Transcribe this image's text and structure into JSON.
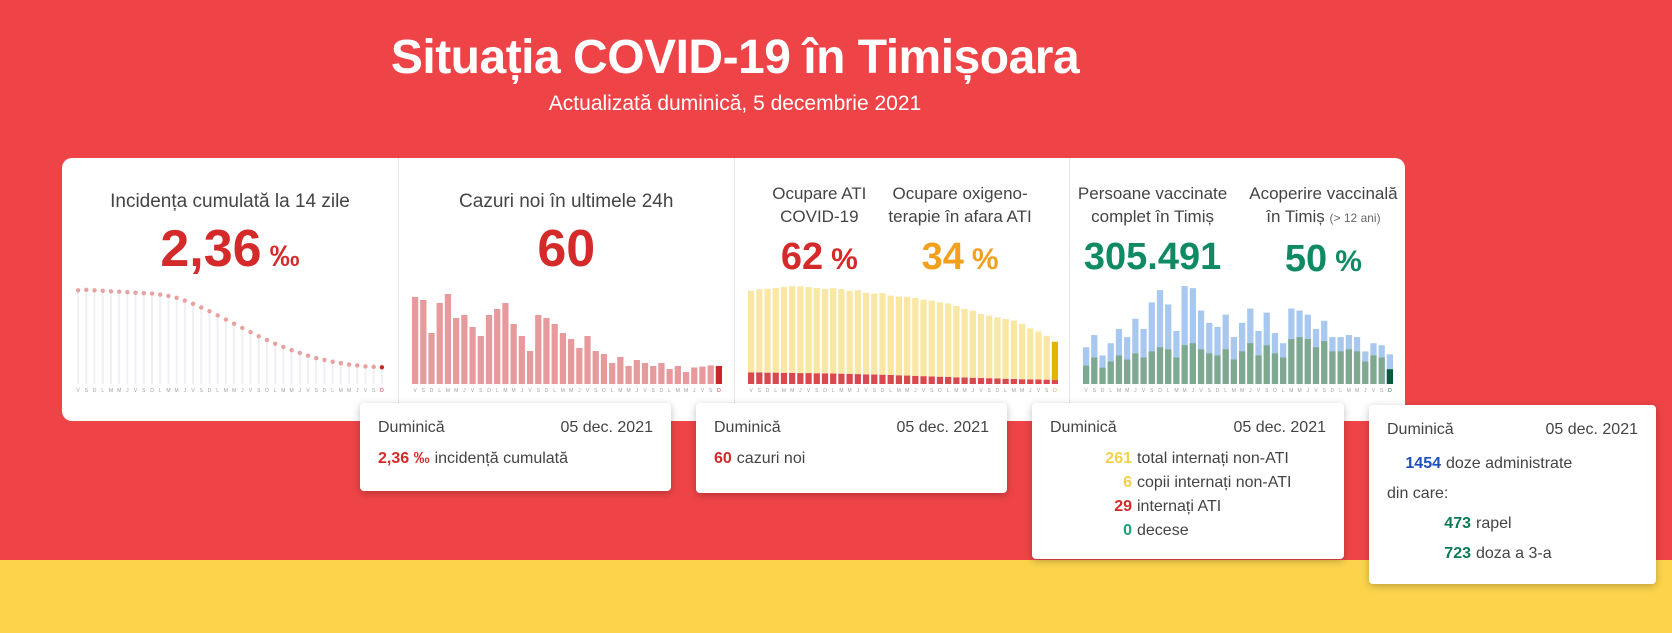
{
  "header": {
    "title": "Situația COVID-19 în Timișoara",
    "subtitle": "Actualizată duminică, 5 decembrie 2021"
  },
  "cards": [
    {
      "metrics": [
        {
          "title_lines": [
            "Incidența cumulată la 14 zile"
          ],
          "value": {
            "value": 2.36,
            "label": "2,36"
          },
          "unit": "‰",
          "color": "#d42a2a"
        }
      ],
      "chart": {
        "type": "line",
        "color": "#e8a0a0",
        "highlight_color": "#c62828",
        "ylim": [
          2.0,
          4.2
        ],
        "categories": [
          "V",
          "S",
          "D",
          "L",
          "M",
          "M",
          "J",
          "V",
          "S",
          "D",
          "L",
          "M",
          "M",
          "J",
          "V",
          "S",
          "D",
          "L",
          "M",
          "M",
          "J",
          "V",
          "S",
          "D",
          "L",
          "M",
          "M",
          "J",
          "V",
          "S",
          "D",
          "L",
          "M",
          "M",
          "J",
          "V",
          "S",
          "D"
        ],
        "series": [
          {
            "name": "incidență cumulată",
            "values": [
              4.02,
              4.03,
              4.02,
              4.01,
              4.0,
              3.99,
              3.98,
              3.97,
              3.96,
              3.95,
              3.93,
              3.9,
              3.86,
              3.8,
              3.73,
              3.65,
              3.57,
              3.48,
              3.39,
              3.3,
              3.21,
              3.12,
              3.03,
              2.95,
              2.87,
              2.8,
              2.73,
              2.67,
              2.61,
              2.56,
              2.52,
              2.48,
              2.45,
              2.42,
              2.4,
              2.38,
              2.37,
              2.36
            ]
          }
        ]
      },
      "tooltip": {
        "day": "Duminică",
        "date": "05 dec. 2021",
        "lines": [
          {
            "value": {
              "value": 2.36,
              "label": "2,36 ‰"
            },
            "text": "incidență cumulată",
            "color": "#d42a2a"
          }
        ]
      }
    },
    {
      "metrics": [
        {
          "title_lines": [
            "Cazuri noi în ultimele 24h"
          ],
          "value": 60,
          "color": "#d42a2a"
        }
      ],
      "chart": {
        "type": "bar",
        "color": "#e79a9c",
        "highlight_color": "#c62828",
        "ylim": [
          0,
          340
        ],
        "categories": [
          "V",
          "S",
          "D",
          "L",
          "M",
          "M",
          "J",
          "V",
          "S",
          "D",
          "L",
          "M",
          "M",
          "J",
          "V",
          "S",
          "D",
          "L",
          "M",
          "M",
          "J",
          "V",
          "S",
          "D",
          "L",
          "M",
          "M",
          "J",
          "V",
          "S",
          "D",
          "L",
          "M",
          "M",
          "J",
          "V",
          "S",
          "D"
        ],
        "series": [
          {
            "name": "cazuri noi",
            "values": [
              290,
              280,
              170,
              270,
              300,
              220,
              230,
              190,
              160,
              230,
              250,
              270,
              200,
              160,
              110,
              230,
              220,
              200,
              170,
              150,
              120,
              160,
              110,
              100,
              70,
              90,
              60,
              80,
              70,
              60,
              70,
              50,
              60,
              40,
              55,
              58,
              62,
              60
            ]
          }
        ]
      },
      "tooltip": {
        "day": "Duminică",
        "date": "05 dec. 2021",
        "lines": [
          {
            "value": 60,
            "text": "cazuri noi",
            "color": "#d42a2a"
          }
        ]
      }
    },
    {
      "metrics": [
        {
          "title_lines": [
            "Ocupare ATI",
            "COVID-19"
          ],
          "value": 62,
          "unit": "%",
          "color": "#d42a2a"
        },
        {
          "title_lines": [
            "Ocupare oxigeno-",
            "terapie în afara ATI"
          ],
          "value": 34,
          "unit": "%",
          "color": "#f2a01e"
        }
      ],
      "chart": {
        "type": "stacked-bar",
        "highlight_color": "#e0b400",
        "ylim": [
          0,
          700
        ],
        "categories": [
          "V",
          "S",
          "D",
          "L",
          "M",
          "M",
          "J",
          "V",
          "S",
          "D",
          "L",
          "M",
          "M",
          "J",
          "V",
          "S",
          "D",
          "L",
          "M",
          "M",
          "J",
          "V",
          "S",
          "D",
          "L",
          "M",
          "M",
          "J",
          "V",
          "S",
          "D",
          "L",
          "M",
          "M",
          "J",
          "V",
          "S",
          "D"
        ],
        "series": [
          {
            "name": "internați ATI",
            "color": "#d9474f",
            "values": [
              80,
              80,
              78,
              78,
              77,
              76,
              75,
              75,
              74,
              73,
              72,
              71,
              70,
              68,
              66,
              65,
              64,
              62,
              60,
              58,
              56,
              54,
              52,
              50,
              48,
              46,
              45,
              43,
              41,
              40,
              38,
              36,
              35,
              33,
              32,
              31,
              30,
              29
            ]
          },
          {
            "name": "total internați non-ATI",
            "color": "#f9e7a3",
            "values": [
              560,
              570,
              575,
              580,
              590,
              595,
              595,
              590,
              585,
              580,
              585,
              580,
              570,
              575,
              560,
              555,
              560,
              545,
              540,
              540,
              535,
              525,
              520,
              510,
              505,
              490,
              470,
              460,
              440,
              430,
              420,
              410,
              400,
              380,
              350,
              330,
              300,
              261
            ]
          }
        ]
      },
      "tooltip": {
        "day": "Duminică",
        "date": "05 dec. 2021",
        "lines": [
          {
            "value": 261,
            "text": "total internați non-ATI",
            "color": "#f2d04b"
          },
          {
            "value": 6,
            "text": "copii internați non-ATI",
            "color": "#f2d04b"
          },
          {
            "value": 29,
            "text": "internați ATI",
            "color": "#d42a2a"
          },
          {
            "value": 0,
            "text": "decese",
            "color": "#16a37a"
          }
        ]
      }
    },
    {
      "metrics": [
        {
          "title_lines": [
            "Persoane vaccinate",
            "complet în Timiș"
          ],
          "value": {
            "value": 305491,
            "label": "305.491"
          },
          "color": "#0f8a64"
        },
        {
          "title_lines": [
            "Acoperire vaccinală",
            "în Timiș"
          ],
          "note": "(> 12 ani)",
          "value": 50,
          "unit": "%",
          "color": "#0f8a64"
        }
      ],
      "chart": {
        "type": "overlay-bar",
        "highlight_color": "#0c5a3e",
        "ylim": [
          0,
          5000
        ],
        "categories": [
          "V",
          "S",
          "D",
          "L",
          "M",
          "M",
          "J",
          "V",
          "S",
          "D",
          "L",
          "M",
          "M",
          "J",
          "V",
          "S",
          "D",
          "L",
          "M",
          "M",
          "J",
          "V",
          "S",
          "D",
          "L",
          "M",
          "M",
          "J",
          "V",
          "S",
          "D",
          "L",
          "M",
          "M",
          "J",
          "V",
          "S",
          "D"
        ],
        "series": [
          {
            "name": "doze administrate",
            "color": "#a9c8ef",
            "values": [
              1800,
              2400,
              1400,
              2000,
              2700,
              2300,
              3200,
              2700,
              4000,
              4600,
              3900,
              2600,
              4800,
              4700,
              3600,
              3000,
              2800,
              3400,
              2300,
              3000,
              3700,
              2600,
              3500,
              2500,
              2000,
              3700,
              3600,
              3400,
              2700,
              3100,
              2300,
              2300,
              2400,
              2300,
              1600,
              2000,
              1900,
              1454
            ]
          },
          {
            "name": "doza a 3-a",
            "color": "#7fa890",
            "values": [
              900,
              1300,
              800,
              1100,
              1400,
              1200,
              1500,
              1300,
              1600,
              1800,
              1700,
              1300,
              1900,
              2000,
              1700,
              1500,
              1400,
              1700,
              1200,
              1600,
              2000,
              1400,
              1900,
              1500,
              1300,
              2200,
              2300,
              2200,
              1800,
              2100,
              1600,
              1600,
              1700,
              1600,
              1100,
              1400,
              1300,
              723
            ]
          }
        ]
      },
      "tooltip": {
        "day": "Duminică",
        "date": "05 dec. 2021",
        "lines": [
          {
            "value": 1454,
            "text": "doze administrate",
            "color": "#1d4fbf"
          },
          {
            "text": "din care:"
          },
          {
            "value": 473,
            "text": "rapel",
            "color": "#0f7a57"
          },
          {
            "value": 723,
            "text": "doza a 3-a",
            "color": "#0f7a57"
          }
        ]
      }
    }
  ]
}
